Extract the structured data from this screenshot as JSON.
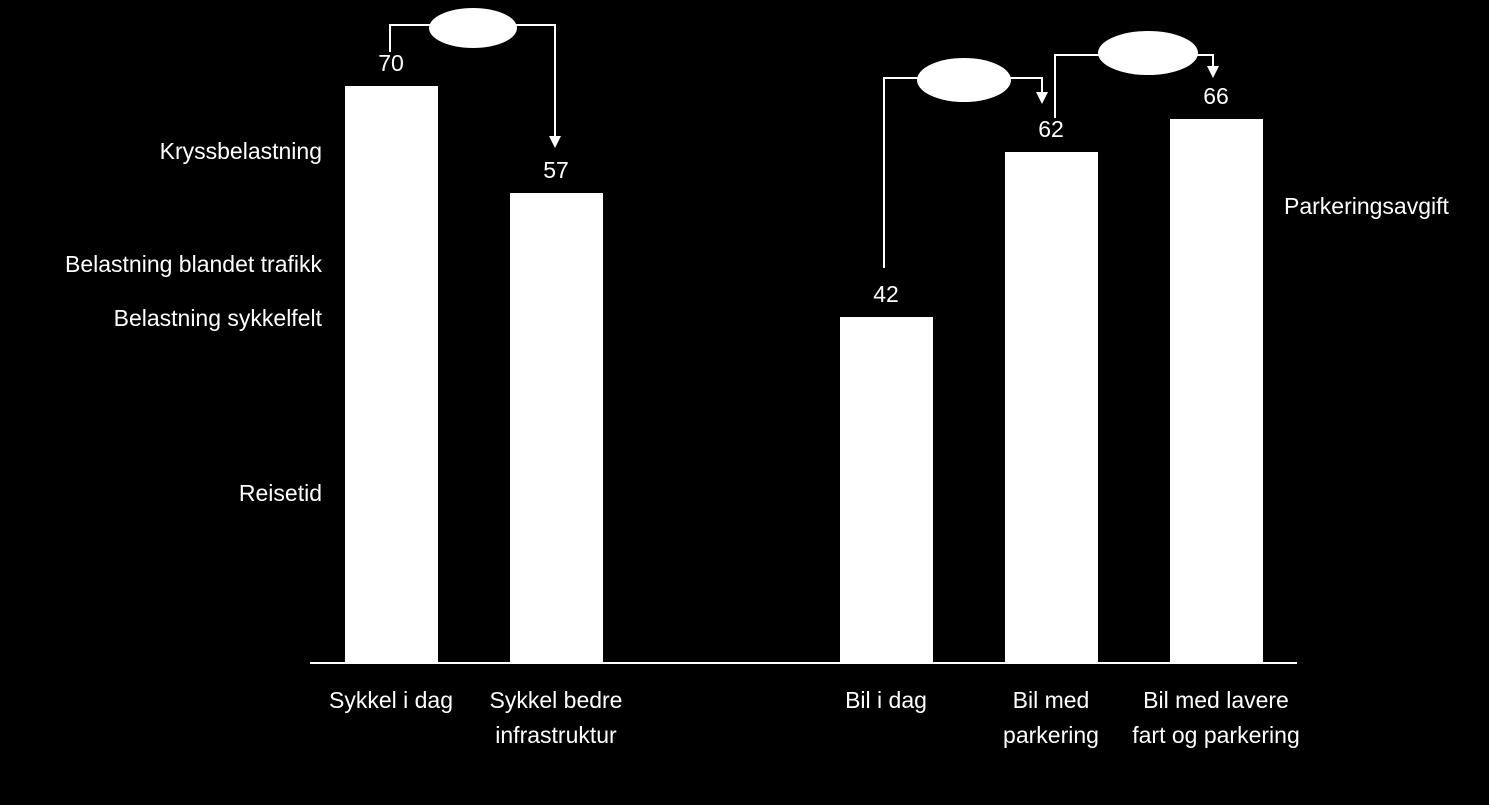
{
  "chart_data": {
    "type": "bar",
    "categories": [
      "Sykkel i dag",
      "Sykkel bedre infrastruktur",
      null,
      "Bil i dag",
      "Bil med parkering",
      "Bil med lavere fart og parkering"
    ],
    "values": [
      70,
      57,
      null,
      42,
      62,
      66
    ],
    "color": "#ffffff",
    "annotations_left": [
      "Kryssbelastning",
      "Belastning blandet trafikk",
      "Belastning sykkelfelt",
      "Reisetid"
    ],
    "annotation_right": "Parkeringsavgift"
  }
}
